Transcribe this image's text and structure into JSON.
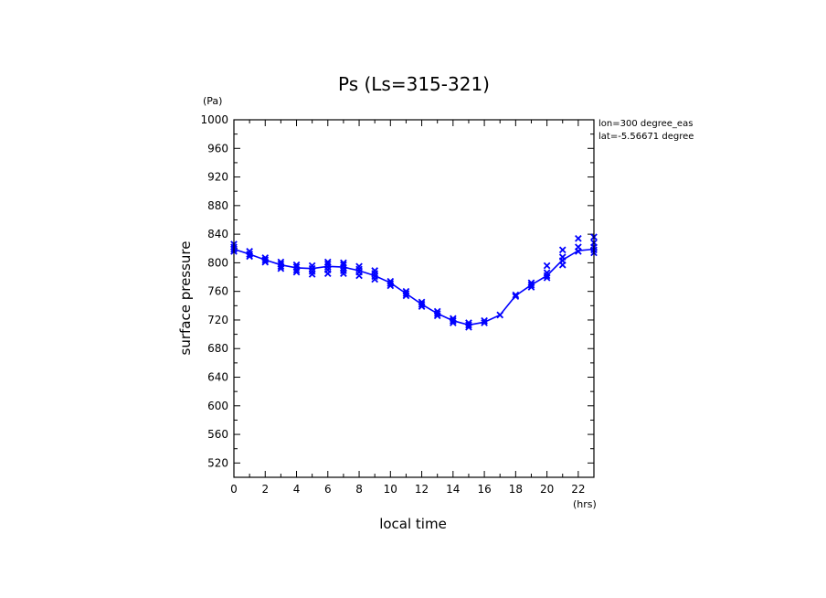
{
  "chart_data": {
    "type": "line",
    "title": "Ps (Ls=315-321)",
    "xlabel": "local time",
    "ylabel": "surface pressure",
    "x_unit": "(hrs)",
    "y_unit": "(Pa)",
    "xlim": [
      0,
      23
    ],
    "ylim": [
      500,
      1000
    ],
    "x_ticks": [
      0,
      2,
      4,
      6,
      8,
      10,
      12,
      14,
      16,
      18,
      20,
      22
    ],
    "y_ticks": [
      520,
      560,
      600,
      640,
      680,
      720,
      760,
      800,
      840,
      880,
      920,
      960,
      1000
    ],
    "annotations": [
      "lon=300 degree_eas",
      "lat=-5.56671 degree"
    ],
    "grid": false,
    "legend": "none",
    "colors": {
      "series": "#0000ff",
      "axes": "#000000"
    },
    "series": [
      {
        "style": "line",
        "x": [
          0,
          1,
          2,
          3,
          4,
          5,
          6,
          7,
          8,
          9,
          10,
          11,
          12,
          13,
          14,
          15,
          16,
          17,
          18,
          19,
          20,
          21,
          22,
          23
        ],
        "y": [
          819,
          812,
          804,
          797,
          793,
          792,
          795,
          794,
          789,
          782,
          772,
          757,
          742,
          729,
          719,
          713,
          717,
          727,
          754,
          769,
          782,
          804,
          817,
          819
        ]
      },
      {
        "style": "markers",
        "marker": "x",
        "points": [
          [
            0,
            826
          ],
          [
            0,
            822
          ],
          [
            0,
            819
          ],
          [
            0,
            816
          ],
          [
            1,
            816
          ],
          [
            1,
            812
          ],
          [
            1,
            809
          ],
          [
            2,
            807
          ],
          [
            2,
            804
          ],
          [
            2,
            801
          ],
          [
            3,
            801
          ],
          [
            3,
            798
          ],
          [
            3,
            795
          ],
          [
            3,
            792
          ],
          [
            4,
            797
          ],
          [
            4,
            794
          ],
          [
            4,
            790
          ],
          [
            4,
            787
          ],
          [
            5,
            796
          ],
          [
            5,
            792
          ],
          [
            5,
            788
          ],
          [
            5,
            784
          ],
          [
            6,
            801
          ],
          [
            6,
            798
          ],
          [
            6,
            794
          ],
          [
            6,
            790
          ],
          [
            6,
            785
          ],
          [
            7,
            800
          ],
          [
            7,
            797
          ],
          [
            7,
            793
          ],
          [
            7,
            789
          ],
          [
            7,
            785
          ],
          [
            8,
            795
          ],
          [
            8,
            791
          ],
          [
            8,
            787
          ],
          [
            8,
            782
          ],
          [
            9,
            789
          ],
          [
            9,
            785
          ],
          [
            9,
            781
          ],
          [
            9,
            777
          ],
          [
            10,
            774
          ],
          [
            10,
            771
          ],
          [
            10,
            768
          ],
          [
            11,
            760
          ],
          [
            11,
            757
          ],
          [
            11,
            754
          ],
          [
            12,
            745
          ],
          [
            12,
            742
          ],
          [
            12,
            739
          ],
          [
            13,
            732
          ],
          [
            13,
            729
          ],
          [
            13,
            726
          ],
          [
            14,
            722
          ],
          [
            14,
            719
          ],
          [
            14,
            716
          ],
          [
            15,
            716
          ],
          [
            15,
            713
          ],
          [
            15,
            710
          ],
          [
            16,
            719
          ],
          [
            16,
            716
          ],
          [
            17,
            727
          ],
          [
            18,
            755
          ],
          [
            18,
            753
          ],
          [
            19,
            772
          ],
          [
            19,
            769
          ],
          [
            19,
            766
          ],
          [
            20,
            796
          ],
          [
            20,
            786
          ],
          [
            20,
            782
          ],
          [
            20,
            779
          ],
          [
            21,
            818
          ],
          [
            21,
            808
          ],
          [
            21,
            803
          ],
          [
            21,
            797
          ],
          [
            22,
            834
          ],
          [
            22,
            822
          ],
          [
            22,
            816
          ],
          [
            23,
            836
          ],
          [
            23,
            828
          ],
          [
            23,
            822
          ],
          [
            23,
            818
          ],
          [
            23,
            814
          ]
        ]
      }
    ]
  }
}
